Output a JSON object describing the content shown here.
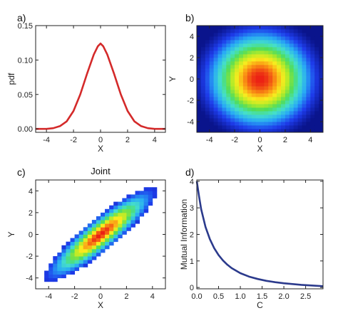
{
  "chart_data": [
    {
      "panel": "a)",
      "type": "line",
      "xlabel": "X",
      "ylabel": "pdf",
      "xlim": [
        -4.8,
        4.8
      ],
      "ylim": [
        -0.005,
        0.15
      ],
      "xticks": [
        "-4",
        "-2",
        "0",
        "2",
        "4"
      ],
      "xtick_values": [
        -4,
        -2,
        0,
        2,
        4
      ],
      "yticks": [
        "0.00",
        "0.05",
        "0.10",
        "0.15"
      ],
      "ytick_values": [
        0.0,
        0.05,
        0.1,
        0.15
      ],
      "series": [
        {
          "color": "#d42a2a",
          "x": [
            -4.8,
            -4.0,
            -3.5,
            -3.0,
            -2.5,
            -2.0,
            -1.5,
            -1.0,
            -0.5,
            -0.2,
            0.0,
            0.2,
            0.5,
            1.0,
            1.5,
            2.0,
            2.5,
            3.0,
            3.5,
            4.0,
            4.8
          ],
          "y": [
            0.0,
            0.0,
            0.001,
            0.004,
            0.011,
            0.026,
            0.05,
            0.08,
            0.108,
            0.12,
            0.124,
            0.12,
            0.108,
            0.08,
            0.05,
            0.026,
            0.011,
            0.004,
            0.001,
            0.0,
            0.0
          ]
        }
      ]
    },
    {
      "panel": "b)",
      "type": "heatmap",
      "xlabel": "X",
      "ylabel": "Y",
      "xlim": [
        -5,
        5
      ],
      "ylim": [
        -5,
        5
      ],
      "xticks": [
        "-4",
        "-2",
        "0",
        "2",
        "4"
      ],
      "xtick_values": [
        -4,
        -2,
        0,
        2,
        4
      ],
      "yticks": [
        "-4",
        "-2",
        "0",
        "2",
        "4"
      ],
      "ytick_values": [
        -4,
        -2,
        0,
        2,
        4
      ],
      "distribution": "independent",
      "sigma_x": 2.4,
      "sigma_y": 2.6,
      "colormap": "rainbow"
    },
    {
      "panel": "c)",
      "type": "heatmap",
      "title": "Joint",
      "xlabel": "X",
      "ylabel": "Y",
      "xlim": [
        -5,
        5
      ],
      "ylim": [
        -5,
        5
      ],
      "xticks": [
        "-4",
        "-2",
        "0",
        "2",
        "4"
      ],
      "xtick_values": [
        -4,
        -2,
        0,
        2,
        4
      ],
      "yticks": [
        "-4",
        "-2",
        "0",
        "2",
        "4"
      ],
      "ytick_values": [
        -4,
        -2,
        0,
        2,
        4
      ],
      "distribution": "correlated",
      "correlation": 0.9,
      "colormap": "rainbow"
    },
    {
      "panel": "d)",
      "type": "line",
      "xlabel": "C",
      "ylabel": "Mutual Information",
      "xlim": [
        0,
        2.9
      ],
      "ylim": [
        -0.05,
        4.05
      ],
      "xticks": [
        "0.0",
        "0.5",
        "1.0",
        "1.5",
        "2.0",
        "2.5"
      ],
      "xtick_values": [
        0.0,
        0.5,
        1.0,
        1.5,
        2.0,
        2.5
      ],
      "yticks": [
        "0",
        "1",
        "2",
        "3",
        "4"
      ],
      "ytick_values": [
        0,
        1,
        2,
        3,
        4
      ],
      "series": [
        {
          "color": "#2b3a8c",
          "x": [
            0.0,
            0.05,
            0.1,
            0.2,
            0.3,
            0.4,
            0.5,
            0.6,
            0.7,
            0.8,
            1.0,
            1.2,
            1.4,
            1.6,
            1.8,
            2.0,
            2.2,
            2.4,
            2.6,
            2.8,
            2.9
          ],
          "y": [
            4.0,
            3.45,
            2.95,
            2.28,
            1.82,
            1.48,
            1.22,
            1.02,
            0.86,
            0.73,
            0.54,
            0.41,
            0.32,
            0.25,
            0.2,
            0.16,
            0.13,
            0.1,
            0.08,
            0.06,
            0.05
          ]
        }
      ]
    }
  ]
}
